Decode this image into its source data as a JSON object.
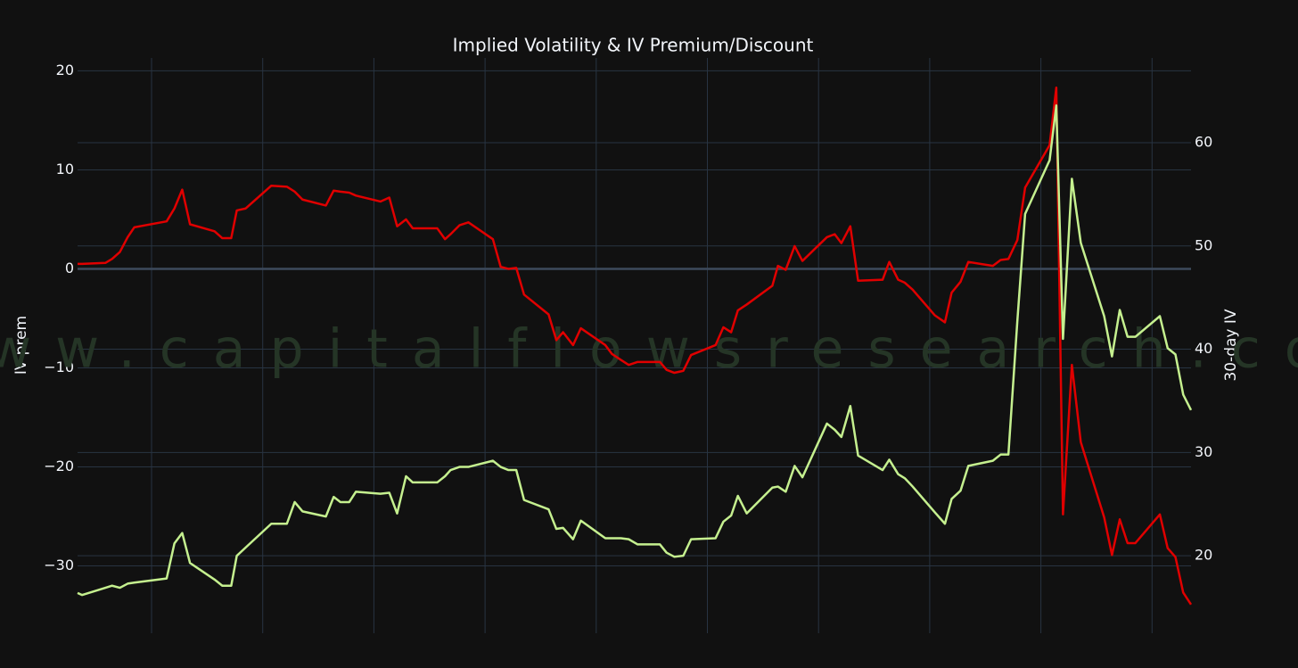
{
  "chart_data": {
    "type": "line",
    "title": "Implied Volatility & IV Premium/Discount",
    "ylabel": "IV-prem",
    "y2label": "30-day IV",
    "watermark": "www.capitalflowsresearch.com",
    "x": [
      0,
      0.4,
      2.5,
      3.1,
      3.8,
      4.5,
      5.1,
      8.0,
      8.7,
      9.4,
      10.1,
      12.3,
      13.0,
      13.8,
      14.3,
      15.1,
      17.4,
      18.8,
      19.5,
      20.2,
      22.3,
      23.0,
      23.6,
      24.4,
      25.0,
      27.2,
      28.0,
      28.7,
      29.5,
      30.1,
      32.3,
      33.0,
      33.5,
      34.3,
      35.1,
      37.3,
      38.0,
      38.7,
      39.4,
      40.1,
      42.3,
      43.0,
      43.6,
      44.5,
      45.2,
      47.4,
      48.0,
      48.8,
      49.5,
      50.3,
      52.3,
      52.9,
      53.6,
      54.4,
      55.1,
      57.3,
      58.0,
      58.7,
      59.3,
      60.1,
      62.4,
      62.9,
      63.6,
      64.4,
      65.1,
      67.3,
      68.0,
      68.6,
      69.4,
      70.1,
      72.3,
      72.9,
      73.7,
      74.3,
      75.0,
      77.0,
      77.9,
      78.5,
      79.3,
      80.0,
      82.2,
      82.9,
      83.6,
      84.4,
      85.1,
      87.3,
      87.9,
      88.5,
      89.3,
      90.1,
      92.2,
      92.9,
      93.6,
      94.3,
      95.0,
      97.2,
      97.9,
      98.6,
      99.3,
      100
    ],
    "xlim": [
      0,
      100
    ],
    "series": [
      {
        "color": "#e00000",
        "axis": "y",
        "values": [
          0.5,
          0.5,
          0.6,
          1.0,
          1.7,
          3.2,
          4.2,
          4.8,
          6.1,
          8.0,
          4.5,
          3.8,
          3.1,
          3.1,
          5.9,
          6.1,
          8.4,
          8.3,
          7.8,
          7.0,
          6.4,
          7.9,
          7.8,
          7.7,
          7.4,
          6.8,
          7.2,
          4.3,
          5.0,
          4.1,
          4.1,
          3.0,
          3.5,
          4.4,
          4.7,
          3.0,
          0.2,
          0.0,
          0.1,
          -2.6,
          -4.6,
          -7.2,
          -6.4,
          -7.7,
          -6.0,
          -7.7,
          -8.6,
          -9.2,
          -9.7,
          -9.4,
          -9.4,
          -10.2,
          -10.5,
          -10.3,
          -8.7,
          -7.7,
          -5.9,
          -6.4,
          -4.2,
          -3.6,
          -1.7,
          0.3,
          -0.1,
          2.3,
          0.8,
          3.2,
          3.5,
          2.6,
          4.3,
          -1.2,
          -1.1,
          0.7,
          -1.1,
          -1.4,
          -2.1,
          -4.7,
          -5.4,
          -2.4,
          -1.3,
          0.7,
          0.3,
          0.9,
          1.0,
          2.9,
          8.2,
          12.5,
          18.3,
          -24.8,
          -9.7,
          -17.5,
          -25.1,
          -28.9,
          -25.3,
          -27.7,
          -27.7,
          -24.8,
          -28.2,
          -29.1,
          -32.7,
          -33.9
        ]
      },
      {
        "color": "#c5f08f",
        "axis": "y2",
        "values": [
          16.4,
          16.2,
          16.9,
          17.1,
          16.9,
          17.3,
          17.4,
          17.8,
          21.2,
          22.2,
          19.3,
          17.7,
          17.1,
          17.1,
          20.0,
          20.8,
          23.1,
          23.1,
          25.2,
          24.3,
          23.8,
          25.7,
          25.2,
          25.2,
          26.2,
          26.0,
          26.1,
          24.1,
          27.7,
          27.1,
          27.1,
          27.7,
          28.3,
          28.6,
          28.6,
          29.2,
          28.6,
          28.3,
          28.3,
          25.4,
          24.5,
          22.6,
          22.7,
          21.6,
          23.4,
          21.7,
          21.7,
          21.7,
          21.6,
          21.1,
          21.1,
          20.3,
          19.9,
          20.0,
          21.6,
          21.7,
          23.3,
          23.9,
          25.8,
          24.1,
          26.6,
          26.7,
          26.2,
          28.7,
          27.6,
          32.8,
          32.2,
          31.5,
          34.5,
          29.7,
          28.3,
          29.3,
          27.9,
          27.5,
          26.7,
          24.2,
          23.1,
          25.5,
          26.3,
          28.7,
          29.2,
          29.8,
          29.8,
          42.7,
          53.1,
          58.3,
          63.6,
          41.0,
          56.5,
          50.3,
          43.2,
          39.3,
          43.8,
          41.2,
          41.2,
          43.2,
          40.1,
          39.5,
          35.6,
          34.1
        ]
      }
    ],
    "ylim": [
      -36.8,
      21.3
    ],
    "yticks": [
      {
        "value": -30,
        "label": "−30"
      },
      {
        "value": -20,
        "label": "−20"
      },
      {
        "value": -10,
        "label": "−10"
      },
      0,
      10,
      20
    ],
    "y2lim": [
      12.5,
      68.2
    ],
    "y2ticks": [
      20,
      30,
      40,
      50,
      60
    ],
    "grid": true,
    "zeroline": true
  }
}
